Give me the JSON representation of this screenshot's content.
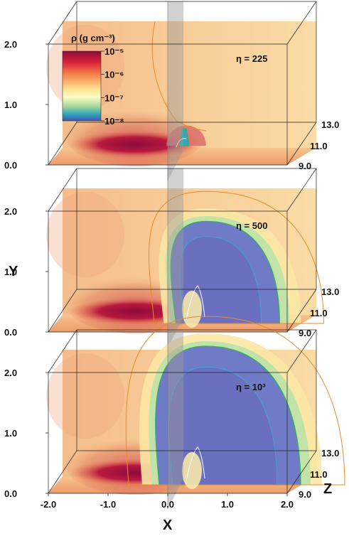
{
  "chart_data": {
    "type": "heatmap",
    "panels": [
      {
        "label": "η = 225",
        "eta": 225,
        "cavity": 0.0
      },
      {
        "label": "η = 500",
        "eta": 500,
        "cavity": 0.62
      },
      {
        "label": "η = 10³",
        "eta": 1000,
        "cavity": 1.0
      }
    ],
    "x_ticks": [
      "-2.0",
      "-1.0",
      "0.0",
      "1.0",
      "2.0"
    ],
    "y_ticks": [
      "0.0",
      "1.0",
      "2.0"
    ],
    "z_ticks": [
      "9.0",
      "11.0",
      "13.0"
    ],
    "xlabel": "X",
    "ylabel": "Y",
    "zlabel": "Z",
    "xlim": [
      -2.0,
      2.0
    ],
    "ylim": [
      0.0,
      2.4
    ],
    "zlim": [
      9.0,
      13.0
    ],
    "colorbar": {
      "title": "ρ (g cm⁻³)",
      "tick_labels": [
        "10⁻⁵",
        "10⁻⁶",
        "10⁻⁷",
        "10⁻⁸"
      ],
      "log_values": [
        -5,
        -6,
        -7,
        -8
      ],
      "colors": [
        "#8e0a3c",
        "#d9223a",
        "#f5804a",
        "#fde293",
        "#fbfcc4",
        "#9fd59a",
        "#35a6b9",
        "#3b57b5"
      ]
    }
  }
}
